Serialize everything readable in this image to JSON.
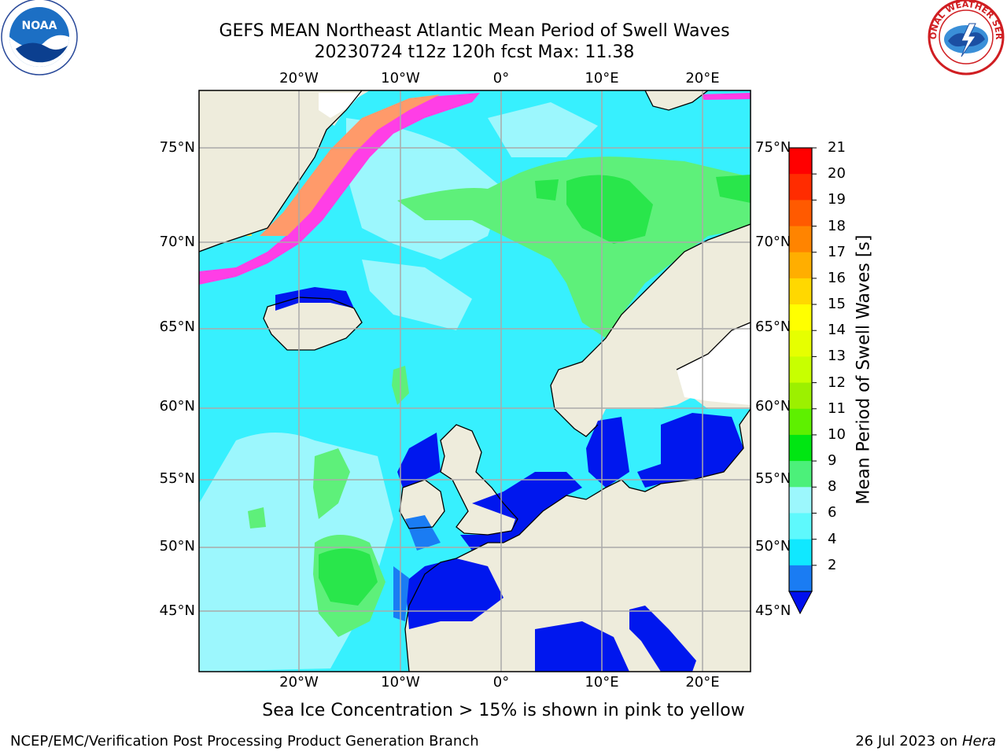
{
  "header": {
    "title_line1": "GEFS MEAN Northeast Atlantic Mean Period of Swell Waves",
    "title_line2": "20230724 t12z 120h fcst   Max: 11.38"
  },
  "logos": {
    "left": {
      "name": "NOAA",
      "ring_text": "NATIONAL OCEANIC AND ATMOSPHERIC ADMINISTRATION · U.S. DEPARTMENT OF COMMERCE"
    },
    "right": {
      "name": "NATIONAL WEATHER SERVICE"
    }
  },
  "map": {
    "lon_labels_top": [
      "20°W",
      "10°W",
      "0°",
      "10°E",
      "20°E"
    ],
    "lon_labels_bottom": [
      "20°W",
      "10°W",
      "0°",
      "10°E",
      "20°E"
    ],
    "lat_labels_left": [
      "75°N",
      "70°N",
      "65°N",
      "60°N",
      "55°N",
      "50°N",
      "45°N"
    ],
    "lat_labels_right": [
      "75°N",
      "70°N",
      "65°N",
      "60°N",
      "55°N",
      "50°N",
      "45°N"
    ],
    "colors": {
      "land": "#eeecdc",
      "sea_base": "#37f0fe",
      "sea_light": "#9cf7fd",
      "green_light": "#5ef07a",
      "green": "#29e64b",
      "blue": "#0017ee",
      "mid_blue": "#1a7cf3",
      "ice_pink": "#ff3ee6",
      "ice_orange": "#ff9a6a",
      "ice_yellow": "#ffd540",
      "grid": "#aaaaaa"
    }
  },
  "colorbar": {
    "title": "Mean Period of Swell Waves [s]",
    "ticks": [
      "21",
      "20",
      "19",
      "18",
      "17",
      "16",
      "15",
      "14",
      "13",
      "12",
      "11",
      "10",
      "9",
      "8",
      "6",
      "4",
      "2"
    ],
    "bands_top_to_bottom": [
      "#ff0000",
      "#ff2c00",
      "#ff5a00",
      "#ff8400",
      "#ffae00",
      "#ffd800",
      "#ffff00",
      "#e6ff00",
      "#c8ff00",
      "#9cf000",
      "#5ef000",
      "#00e612",
      "#4cf07a",
      "#9cf7fd",
      "#5ef9fd",
      "#10e8ff",
      "#1a7cf3"
    ],
    "extend_color": "#0010ee"
  },
  "notes": {
    "ice": "Sea Ice Concentration > 15% is shown in pink to yellow"
  },
  "footer": {
    "left": "NCEP/EMC/Verification Post Processing Product Generation Branch",
    "date": "26 Jul 2023 on ",
    "machine": "Hera"
  }
}
